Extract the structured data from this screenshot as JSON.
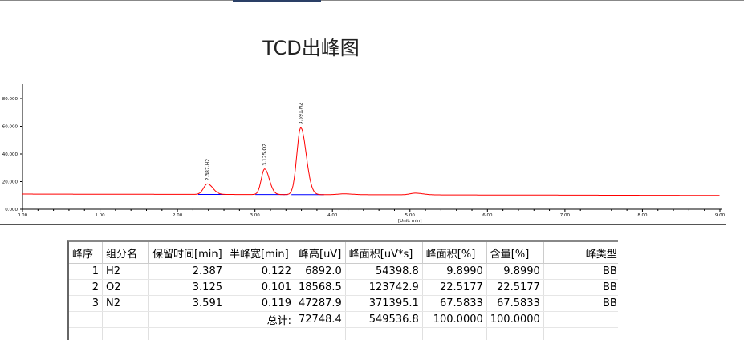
{
  "title": "TCD出峰图",
  "chart_data": {
    "type": "line",
    "title": "TCD出峰图",
    "xlabel": "[Unit: min]",
    "ylabel": "",
    "xlim": [
      0,
      9
    ],
    "ylim": [
      0,
      90
    ],
    "x_ticks": [
      "0.00",
      "1.00",
      "2.00",
      "3.00",
      "4.00",
      "5.00",
      "6.00",
      "7.00",
      "8.00",
      "9.00"
    ],
    "y_ticks": [
      "0.000",
      "20.000",
      "40.000",
      "60.000",
      "80.000"
    ],
    "grid": false,
    "line_color": "#ff0000",
    "baseline_color": "#0000ff",
    "baseline_start": 11.0,
    "baseline_end": 10.0,
    "peaks": [
      {
        "label": "2.387,H2",
        "rt": 2.387,
        "height": 7.6,
        "sigma": 0.05
      },
      {
        "label": "3.125,O2",
        "rt": 3.125,
        "height": 18.5,
        "sigma": 0.043
      },
      {
        "label": "3.591,N2",
        "rt": 3.591,
        "height": 48.3,
        "sigma": 0.05
      },
      {
        "label": "",
        "rt": 4.15,
        "height": 0.6,
        "sigma": 0.08
      },
      {
        "label": "",
        "rt": 5.07,
        "height": 1.2,
        "sigma": 0.07
      }
    ]
  },
  "table": {
    "headers": [
      "峰序",
      "组分名",
      "保留时间[min]",
      "半峰宽[min]",
      "峰高[uV]",
      "峰面积[uV*s]",
      "峰面积[%]",
      "含量[%]",
      "峰类型"
    ],
    "rows": [
      [
        "1",
        "H2",
        "2.387",
        "0.122",
        "6892.0",
        "54398.8",
        "9.8990",
        "9.8990",
        "BB"
      ],
      [
        "2",
        "O2",
        "3.125",
        "0.101",
        "18568.5",
        "123742.9",
        "22.5177",
        "22.5177",
        "BB"
      ],
      [
        "3",
        "N2",
        "3.591",
        "0.119",
        "47287.9",
        "371395.1",
        "67.5833",
        "67.5833",
        "BB"
      ],
      [
        "",
        "",
        "",
        "总计:",
        "72748.4",
        "549536.8",
        "100.0000",
        "100.0000",
        ""
      ],
      [
        "",
        "",
        "",
        "",
        "",
        "",
        "",
        "",
        ""
      ]
    ]
  }
}
